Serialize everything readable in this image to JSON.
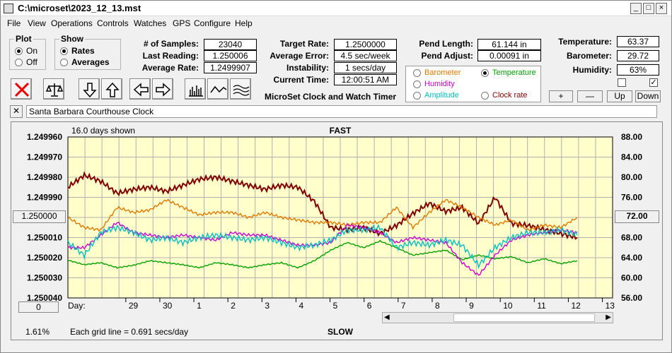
{
  "window": {
    "title": "C:\\microset\\2023_12_13.mst"
  },
  "menu": [
    "File",
    "View",
    "Operations",
    "Controls",
    "Watches",
    "GPS",
    "Configure",
    "Help"
  ],
  "plot_group": {
    "title": "Plot",
    "on": "On",
    "off": "Off",
    "selected": "On"
  },
  "show_group": {
    "title": "Show",
    "rates": "Rates",
    "averages": "Averages",
    "selected": "Rates"
  },
  "stats": {
    "samples_label": "# of Samples:",
    "samples": "23040",
    "last_label": "Last Reading:",
    "last": "1.250006",
    "avg_label": "Average Rate:",
    "avg": "1.2499907",
    "target_label": "Target Rate:",
    "target": "1.2500000",
    "avgerr_label": "Average Error:",
    "avgerr": "4.5 sec/week",
    "instab_label": "Instability:",
    "instab": "1 secs/day",
    "time_label": "Current Time:",
    "time": "12:00:51 AM",
    "pendlen_label": "Pend Length:",
    "pendlen": "61.144 in",
    "pendadj_label": "Pend Adjust:",
    "pendadj": "0.00091 in",
    "temp_label": "Temperature:",
    "temp": "63.37",
    "baro_label": "Barometer:",
    "baro": "29.72",
    "hum_label": "Humidity:",
    "hum": "63%"
  },
  "app_caption": "MicroSet Clock and Watch Timer",
  "sensors": {
    "barometer": "Barometer",
    "temperature": "Temperature",
    "humidity": "Humidity",
    "amplitude": "Amplitude",
    "clockrate": "Clock rate",
    "selected": "Temperature",
    "colors": {
      "barometer": "#e07800",
      "temperature": "#00a000",
      "humidity": "#d000d0",
      "amplitude": "#00c0c0",
      "clockrate": "#800000"
    }
  },
  "sensor_buttons": {
    "plus": "+",
    "minus": "—",
    "up": "Up",
    "down": "Down"
  },
  "clock_name": "Santa Barbara Courthouse Clock",
  "chart_header": {
    "days_shown": "16.0 days shown",
    "fast": "FAST",
    "slow": "SLOW",
    "grid_note": "Each grid line = 0.691 secs/day",
    "percent": "1.61%",
    "day_label": "Day:"
  },
  "side_buttons": {
    "left_mid": "1.250000",
    "left_bottom": "0",
    "right_mid": "72.00"
  },
  "chart_data": {
    "type": "line",
    "title": "",
    "x_ticks": [
      "29",
      "30",
      "1",
      "2",
      "3",
      "4",
      "5",
      "6",
      "7",
      "8",
      "9",
      "10",
      "11",
      "12",
      "13"
    ],
    "y_left_ticks": [
      "1.249960",
      "1.249970",
      "1.249980",
      "1.249990",
      "1.250000",
      "1.250010",
      "1.250020",
      "1.250030",
      "1.250040"
    ],
    "y_right_ticks": [
      "88.00",
      "84.00",
      "80.00",
      "76.00",
      "72.00",
      "68.00",
      "64.00",
      "60.00",
      "56.00"
    ],
    "ylim_left": [
      1.24996,
      1.25004
    ],
    "ylim_right": [
      56,
      88
    ],
    "grid": true,
    "series": [
      {
        "name": "Clock rate",
        "color": "#800000",
        "values": [
          1.249985,
          1.249979,
          1.249982,
          1.249988,
          1.249986,
          1.249985,
          1.249987,
          1.249984,
          1.249981,
          1.24998,
          1.249982,
          1.249984,
          1.249986,
          1.249984,
          1.249985,
          1.249992,
          1.250005,
          1.250006,
          1.250005,
          1.250008,
          1.250004,
          1.249998,
          1.249993,
          1.249997,
          1.249995,
          1.250003,
          1.24999,
          1.250003,
          1.250004,
          1.250006,
          1.250008,
          1.25001
        ]
      },
      {
        "name": "Temperature",
        "color": "#00a000",
        "values": [
          63.5,
          62.6,
          63.0,
          62.0,
          62.5,
          63.4,
          63.0,
          62.6,
          62.0,
          63.0,
          62.6,
          62.0,
          62.6,
          63.0,
          62.0,
          63.4,
          65.5,
          67.0,
          66.0,
          67.3,
          66.0,
          64.5,
          65.0,
          65.5,
          63.6,
          64.5,
          63.8,
          64.2,
          63.0,
          63.8,
          62.8,
          63.4
        ]
      },
      {
        "name": "Barometer",
        "color": "#e07800",
        "values": [
          72.0,
          70.0,
          69.5,
          74.0,
          73.0,
          73.5,
          75.5,
          74.0,
          72.5,
          73.0,
          73.0,
          72.0,
          73.0,
          72.0,
          71.5,
          71.0,
          71.0,
          70.5,
          71.0,
          71.0,
          74.0,
          70.0,
          73.0,
          75.5,
          74.0,
          72.0,
          70.5,
          71.5,
          69.5,
          70.5,
          70.0,
          72.0
        ]
      },
      {
        "name": "Humidity",
        "color": "#d000d0",
        "values": [
          66.0,
          66.0,
          68.5,
          71.0,
          69.0,
          68.5,
          68.0,
          68.5,
          68.0,
          67.5,
          69.0,
          68.5,
          68.5,
          67.5,
          66.5,
          66.5,
          67.0,
          70.5,
          70.0,
          69.0,
          67.0,
          68.0,
          67.5,
          67.0,
          63.0,
          60.5,
          64.5,
          67.5,
          68.5,
          69.0,
          69.5,
          69.0
        ]
      },
      {
        "name": "Amplitude",
        "color": "#00c0c0",
        "values": [
          67.0,
          64.5,
          69.0,
          70.0,
          69.0,
          67.5,
          68.0,
          67.0,
          68.0,
          68.5,
          68.0,
          67.5,
          68.0,
          67.0,
          66.0,
          66.5,
          67.5,
          69.5,
          69.5,
          70.0,
          66.0,
          67.0,
          66.5,
          67.5,
          66.5,
          62.5,
          66.0,
          68.0,
          69.0,
          69.0,
          69.5,
          68.5
        ]
      }
    ]
  }
}
